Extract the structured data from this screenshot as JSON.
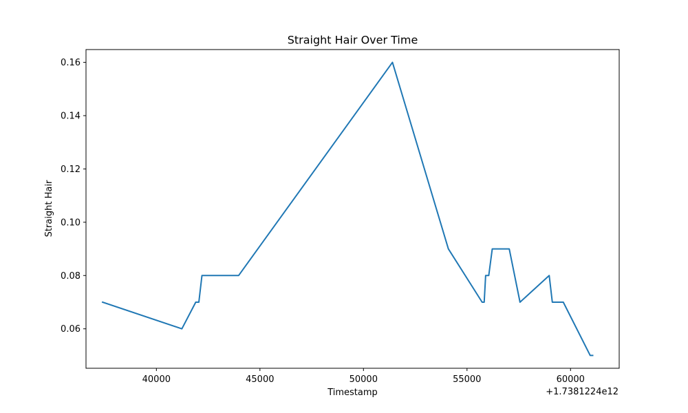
{
  "chart_data": {
    "type": "line",
    "title": "Straight Hair Over Time",
    "xlabel": "Timestamp",
    "ylabel": "Straight Hair",
    "x_offset_label": "+1.7381224e12",
    "xlim": [
      36600,
      62350
    ],
    "ylim": [
      0.0452,
      0.1648
    ],
    "x_ticks": [
      40000,
      45000,
      50000,
      55000,
      60000
    ],
    "x_tick_labels": [
      "40000",
      "45000",
      "50000",
      "55000",
      "60000"
    ],
    "y_ticks": [
      0.06,
      0.08,
      0.1,
      0.12,
      0.14,
      0.16
    ],
    "y_tick_labels": [
      "0.06",
      "0.08",
      "0.10",
      "0.12",
      "0.14",
      "0.16"
    ],
    "grid": false,
    "legend": "none",
    "series": [
      {
        "color": "#1f77b4",
        "x": [
          37400,
          41230,
          41900,
          42050,
          42200,
          43970,
          51400,
          54100,
          55730,
          55830,
          55900,
          56050,
          56220,
          57040,
          57560,
          58970,
          59120,
          59650,
          60950,
          61070
        ],
        "y": [
          0.07,
          0.06,
          0.07,
          0.07,
          0.08,
          0.08,
          0.16,
          0.09,
          0.07,
          0.07,
          0.08,
          0.08,
          0.09,
          0.09,
          0.07,
          0.08,
          0.07,
          0.07,
          0.05,
          0.05
        ]
      }
    ]
  }
}
